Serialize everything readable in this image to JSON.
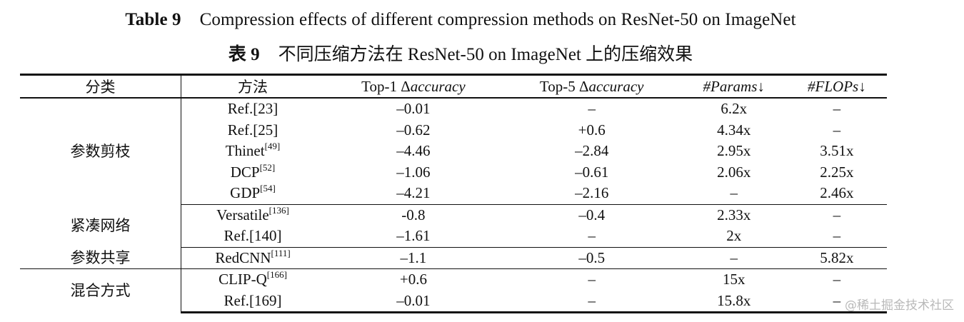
{
  "caption_en": {
    "label": "Table 9",
    "text": "Compression effects of different compression methods on ResNet-50 on ImageNet"
  },
  "caption_zh": {
    "label": "表 9",
    "text": "不同压缩方法在 ResNet-50 on ImageNet 上的压缩效果"
  },
  "headers": {
    "category": "分类",
    "method": "方法",
    "top1_prefix": "Top-1 Δ",
    "top1_italic": "accuracy",
    "top5_prefix": "Top-5 Δ",
    "top5_italic": "accuracy",
    "params_italic": "#Params",
    "params_suffix": "↓",
    "flops_italic": "#FLOPs",
    "flops_suffix": "↓"
  },
  "groups": [
    {
      "category": "参数剪枝",
      "rows": [
        {
          "method": "Ref.[23]",
          "sup": "",
          "top1": "–0.01",
          "top5": "–",
          "params": "6.2x",
          "flops": "–"
        },
        {
          "method": "Ref.[25]",
          "sup": "",
          "top1": "–0.62",
          "top5": "+0.6",
          "params": "4.34x",
          "flops": "–"
        },
        {
          "method": "Thinet",
          "sup": "[49]",
          "top1": "–4.46",
          "top5": "–2.84",
          "params": "2.95x",
          "flops": "3.51x"
        },
        {
          "method": "DCP",
          "sup": "[52]",
          "top1": "–1.06",
          "top5": "–0.61",
          "params": "2.06x",
          "flops": "2.25x"
        },
        {
          "method": "GDP",
          "sup": "[54]",
          "top1": "–4.21",
          "top5": "–2.16",
          "params": "–",
          "flops": "2.46x"
        }
      ]
    },
    {
      "category": "紧凑网络",
      "rows": [
        {
          "method": "Versatile",
          "sup": "[136]",
          "top1": "-0.8",
          "top5": "–0.4",
          "params": "2.33x",
          "flops": "–"
        },
        {
          "method": "Ref.[140]",
          "sup": "",
          "top1": "–1.61",
          "top5": "–",
          "params": "2x",
          "flops": "–"
        }
      ]
    },
    {
      "category": "参数共享",
      "rows": [
        {
          "method": "RedCNN",
          "sup": "[111]",
          "top1": "–1.1",
          "top5": "–0.5",
          "params": "–",
          "flops": "5.82x"
        }
      ]
    },
    {
      "category": "混合方式",
      "rows": [
        {
          "method": "CLIP-Q",
          "sup": "[166]",
          "top1": "+0.6",
          "top5": "–",
          "params": "15x",
          "flops": "–"
        },
        {
          "method": "Ref.[169]",
          "sup": "",
          "top1": "–0.01",
          "top5": "–",
          "params": "15.8x",
          "flops": "–"
        }
      ]
    }
  ],
  "watermark": "@稀土掘金技术社区"
}
